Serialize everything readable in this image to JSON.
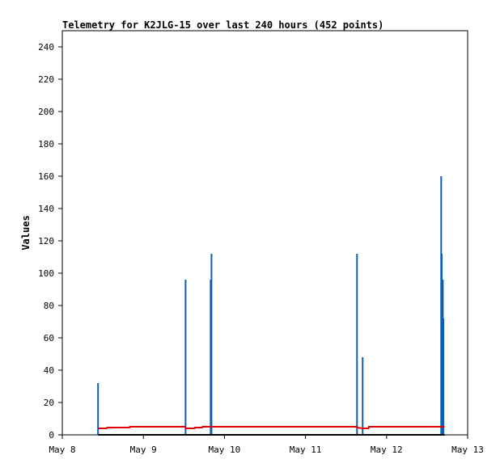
{
  "chart_data": {
    "type": "line",
    "title": "Telemetry for K2JLG-15 over last 240 hours (452 points)",
    "ylabel": "Values",
    "xlabel": "",
    "x_range": [
      "May 8",
      "May 13"
    ],
    "x_ticks": [
      "May 8",
      "May 9",
      "May 10",
      "May 11",
      "May 12",
      "May 13"
    ],
    "ylim": [
      0,
      250
    ],
    "y_ticks": [
      0,
      20,
      40,
      60,
      80,
      100,
      120,
      140,
      160,
      180,
      200,
      220,
      240
    ],
    "grid": false,
    "legend": "none",
    "colors": {
      "spikes": "#0b5fb5",
      "baseline": "#e00000",
      "zero_line": "#000000",
      "frame": "#000000"
    },
    "series": [
      {
        "color": "#0b5fb5",
        "style": "spikes",
        "points": [
          {
            "x": "May 8 10:35",
            "y": 32
          },
          {
            "x": "May 9 12:30",
            "y": 96
          },
          {
            "x": "May 9 19:55",
            "y": 96
          },
          {
            "x": "May 9 20:10",
            "y": 112
          },
          {
            "x": "May 11 15:15",
            "y": 112
          },
          {
            "x": "May 11 16:55",
            "y": 48
          },
          {
            "x": "May 12 16:10",
            "y": 160
          },
          {
            "x": "May 12 16:20",
            "y": 112
          },
          {
            "x": "May 12 16:30",
            "y": 24
          },
          {
            "x": "May 12 16:40",
            "y": 96
          },
          {
            "x": "May 12 16:50",
            "y": 72
          }
        ]
      },
      {
        "color": "#e00000",
        "style": "line",
        "points": [
          {
            "x": "May 8 10:35",
            "y": 4
          },
          {
            "x": "May 8 13:10",
            "y": 4
          },
          {
            "x": "May 8 13:15",
            "y": 4.5
          },
          {
            "x": "May 8 19:55",
            "y": 4.5
          },
          {
            "x": "May 8 20:00",
            "y": 5
          },
          {
            "x": "May 9 12:25",
            "y": 5
          },
          {
            "x": "May 9 12:30",
            "y": 4
          },
          {
            "x": "May 9 15:10",
            "y": 4
          },
          {
            "x": "May 9 15:15",
            "y": 4.5
          },
          {
            "x": "May 9 17:25",
            "y": 4.5
          },
          {
            "x": "May 9 17:30",
            "y": 5
          },
          {
            "x": "May 11 15:10",
            "y": 5
          },
          {
            "x": "May 11 15:15",
            "y": 4.5
          },
          {
            "x": "May 11 16:50",
            "y": 4
          },
          {
            "x": "May 11 18:40",
            "y": 4
          },
          {
            "x": "May 11 18:45",
            "y": 5
          },
          {
            "x": "May 12 17:10",
            "y": 5
          }
        ]
      },
      {
        "color": "#000000",
        "style": "line",
        "points": [
          {
            "x": "May 8 10:35",
            "y": 0
          },
          {
            "x": "May 12 17:10",
            "y": 0
          }
        ]
      }
    ]
  }
}
